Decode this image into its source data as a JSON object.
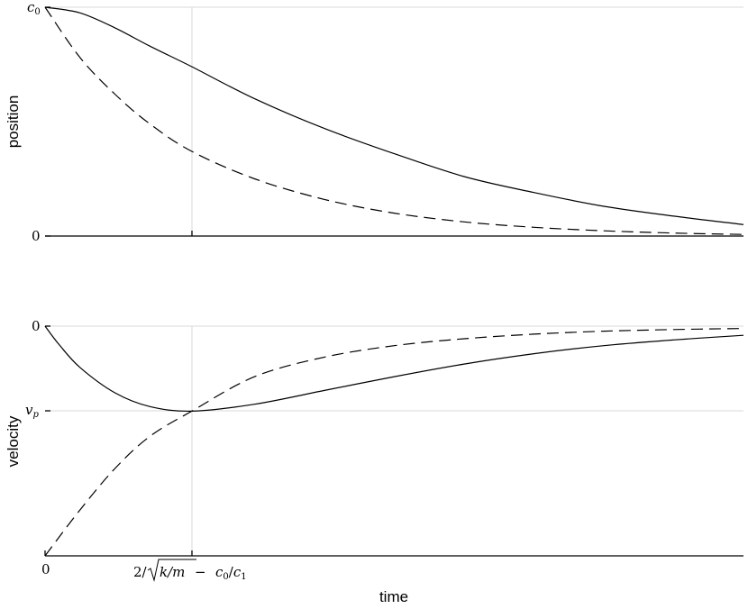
{
  "chart_data": [
    {
      "type": "line",
      "ylabel": "position",
      "x_range": [
        0,
        1
      ],
      "y_range": [
        0,
        1
      ],
      "yticks": [
        {
          "value": 1,
          "label": "c0"
        },
        {
          "value": 0,
          "label": "0"
        }
      ],
      "x_marker": 0.21,
      "grid": "partial",
      "series": [
        {
          "style": "solid",
          "x": [
            0.0,
            0.05,
            0.1,
            0.15,
            0.21,
            0.3,
            0.4,
            0.5,
            0.6,
            0.7,
            0.8,
            0.9,
            1.0
          ],
          "y": [
            1.0,
            0.975,
            0.91,
            0.83,
            0.74,
            0.6,
            0.47,
            0.36,
            0.26,
            0.19,
            0.13,
            0.087,
            0.05
          ]
        },
        {
          "style": "dashed",
          "x": [
            0.0,
            0.05,
            0.1,
            0.15,
            0.21,
            0.3,
            0.4,
            0.5,
            0.6,
            0.7,
            0.8,
            0.9,
            1.0
          ],
          "y": [
            1.0,
            0.78,
            0.62,
            0.49,
            0.37,
            0.25,
            0.16,
            0.1,
            0.062,
            0.038,
            0.023,
            0.013,
            0.007
          ]
        }
      ]
    },
    {
      "type": "line",
      "ylabel": "velocity",
      "xlabel": "time",
      "x_range": [
        0,
        1
      ],
      "y_range": [
        -1,
        0
      ],
      "yticks": [
        {
          "value": 0,
          "label": "0"
        },
        {
          "value": -0.37,
          "label": "v_p"
        }
      ],
      "xticks": [
        {
          "value": 0,
          "label": "0"
        },
        {
          "value": 0.21,
          "label": "2/sqrt(k/m) - c0/c1"
        }
      ],
      "x_marker": 0.21,
      "grid": "partial",
      "series": [
        {
          "style": "solid",
          "x": [
            0.0,
            0.02,
            0.05,
            0.1,
            0.15,
            0.21,
            0.3,
            0.4,
            0.5,
            0.6,
            0.7,
            0.8,
            0.9,
            1.0
          ],
          "y": [
            0.0,
            -0.08,
            -0.18,
            -0.29,
            -0.35,
            -0.37,
            -0.34,
            -0.28,
            -0.22,
            -0.165,
            -0.12,
            -0.085,
            -0.06,
            -0.04
          ]
        },
        {
          "style": "dashed",
          "x": [
            0.0,
            0.05,
            0.1,
            0.15,
            0.21,
            0.3,
            0.4,
            0.5,
            0.6,
            0.7,
            0.8,
            0.9,
            1.0
          ],
          "y": [
            -1.0,
            -0.8,
            -0.62,
            -0.48,
            -0.37,
            -0.22,
            -0.135,
            -0.085,
            -0.055,
            -0.035,
            -0.022,
            -0.015,
            -0.01
          ]
        }
      ]
    }
  ],
  "labels": {
    "position_axis": "position",
    "velocity_axis": "velocity",
    "time_axis": "time",
    "top_c0_base": "c",
    "top_c0_sub": "0",
    "top_zero": "0",
    "bot_zero": "0",
    "bot_vp_base": "v",
    "bot_vp_sub": "p",
    "x_zero": "0",
    "x_marker_two": "2/",
    "x_marker_k": "k/m",
    "x_marker_minus": " − ",
    "x_marker_c": "c",
    "x_marker_c0sub": "0",
    "x_marker_slash": "/",
    "x_marker_c1": "c",
    "x_marker_c1sub": "1"
  }
}
